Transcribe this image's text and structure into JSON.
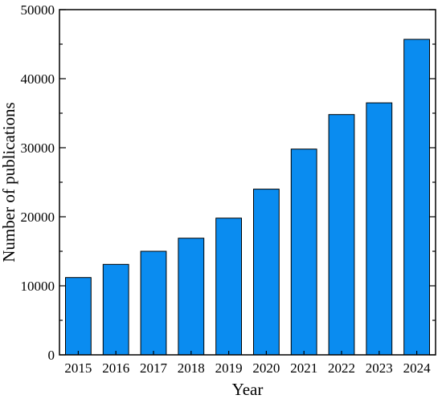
{
  "chart_data": {
    "type": "bar",
    "title": "",
    "xlabel": "Year",
    "ylabel": "Number of publications",
    "categories": [
      "2015",
      "2016",
      "2017",
      "2018",
      "2019",
      "2020",
      "2021",
      "2022",
      "2023",
      "2024"
    ],
    "values": [
      11200,
      13100,
      15000,
      16900,
      19800,
      24000,
      29800,
      34800,
      36500,
      45700
    ],
    "ylim": [
      0,
      50000
    ],
    "yticks": [
      0,
      10000,
      20000,
      30000,
      40000,
      50000
    ],
    "ytick_labels": [
      "0",
      "10000",
      "20000",
      "30000",
      "40000",
      "50000"
    ],
    "grid": false,
    "bar_color": "#0a8cf0"
  }
}
